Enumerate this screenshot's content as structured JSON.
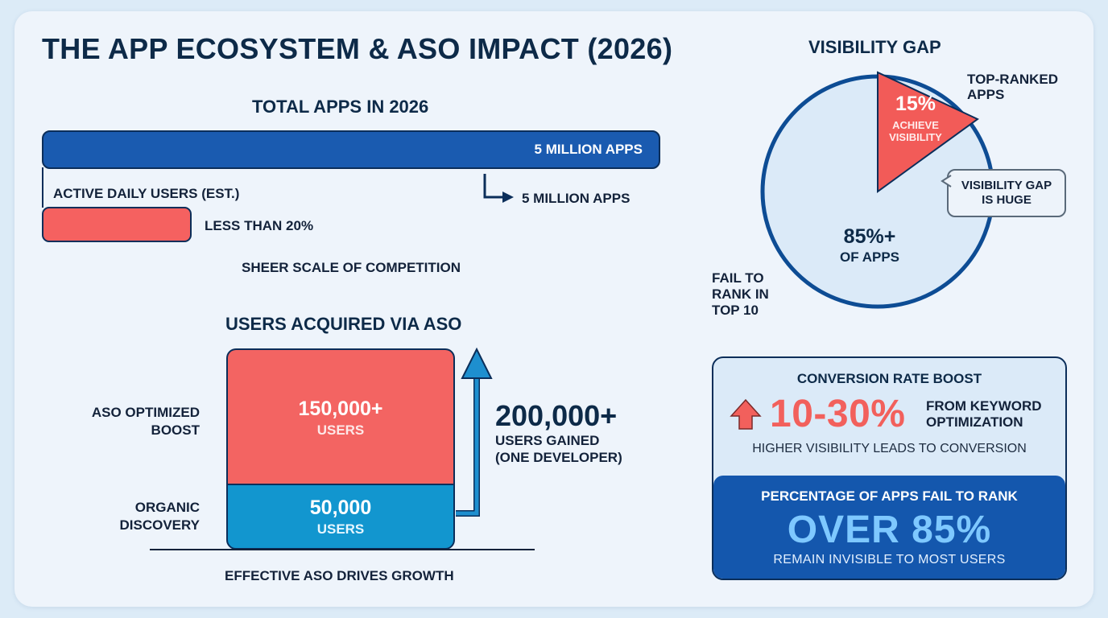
{
  "title": "THE APP ECOSYSTEM & ASO IMPACT (2026)",
  "colors": {
    "background": "#eef4fb",
    "navy": "#0d2a48",
    "blue": "#1a5bb0",
    "coral": "#f36462",
    "cyan": "#1296cf",
    "highlight_blue": "#7ec8ff"
  },
  "scale_section": {
    "title": "TOTAL APPS IN 2026",
    "total_bar_label": "5 MILLION APPS",
    "active_label": "ACTIVE DAILY USERS (EST.)",
    "arrow_label": "5 MILLION APPS",
    "active_bar_label": "LESS THAN 20%",
    "caption": "SHEER SCALE OF COMPETITION"
  },
  "aso_section": {
    "title": "USERS ACQUIRED VIA ASO",
    "boost_label_line1": "ASO OPTIMIZED",
    "boost_label_line2": "BOOST",
    "boost_value": "150,000+",
    "boost_unit": "USERS",
    "organic_label_line1": "ORGANIC",
    "organic_label_line2": "DISCOVERY",
    "organic_value": "50,000",
    "organic_unit": "USERS",
    "total_value": "200,000+",
    "total_sub_line1": "USERS GAINED",
    "total_sub_line2": "(ONE DEVELOPER)",
    "caption": "EFFECTIVE ASO DRIVES GROWTH"
  },
  "visibility_section": {
    "title": "VISIBILITY GAP",
    "top_label_line1": "TOP-RANKED",
    "top_label_line2": "APPS",
    "top_value": "15%",
    "top_sub_line1": "ACHIEVE",
    "top_sub_line2": "VISIBILITY",
    "rest_value": "85%+",
    "rest_sub": "OF APPS",
    "fail_label_line1": "FAIL TO",
    "fail_label_line2": "RANK IN",
    "fail_label_line3": "TOP 10",
    "callout_line1": "VISIBILITY GAP",
    "callout_line2": "IS HUGE"
  },
  "conversion_section": {
    "title": "CONVERSION RATE BOOST",
    "value": "10-30%",
    "desc_line1": "FROM KEYWORD",
    "desc_line2": "OPTIMIZATION",
    "note": "HIGHER VISIBILITY LEADS TO CONVERSION",
    "icon": "up-arrow-icon"
  },
  "fail_section": {
    "title": "PERCENTAGE OF APPS FAIL TO RANK",
    "value": "OVER 85%",
    "sub": "REMAIN INVISIBLE TO MOST USERS"
  },
  "chart_data": [
    {
      "type": "bar",
      "title": "TOTAL APPS IN 2026",
      "categories": [
        "TOTAL APPS IN 2026",
        "ACTIVE DAILY USERS (EST.)"
      ],
      "values": [
        100,
        20
      ],
      "data_labels": [
        "5 MILLION APPS",
        "LESS THAN 20%"
      ]
    },
    {
      "type": "bar",
      "title": "USERS ACQUIRED VIA ASO",
      "stacked": true,
      "categories": [
        "ORGANIC DISCOVERY",
        "ASO OPTIMIZED BOOST"
      ],
      "values": [
        50000,
        150000
      ],
      "total": 200000
    },
    {
      "type": "pie",
      "title": "VISIBILITY GAP",
      "labels": [
        "15% ACHIEVE VISIBILITY",
        "85%+ OF APPS"
      ],
      "values": [
        15,
        85
      ]
    }
  ]
}
